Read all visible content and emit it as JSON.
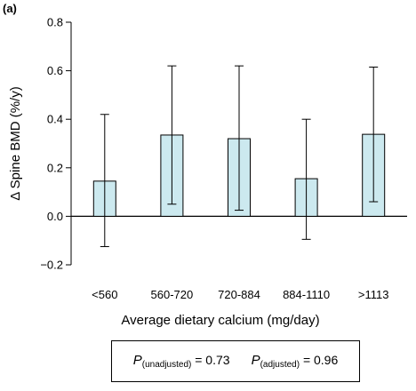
{
  "chart_data": {
    "type": "bar",
    "panel_label": "(a)",
    "categories": [
      "<560",
      "560-720",
      "720-884",
      "884-1110",
      ">1113"
    ],
    "values": [
      0.145,
      0.335,
      0.32,
      0.155,
      0.338
    ],
    "error_low": [
      -0.125,
      0.05,
      0.025,
      -0.095,
      0.06
    ],
    "error_high": [
      0.42,
      0.62,
      0.62,
      0.4,
      0.615
    ],
    "xlabel": "Average dietary calcium (mg/day)",
    "ylabel": "Δ Spine BMD (%/y)",
    "ylim": [
      -0.2,
      0.8
    ],
    "yticks": [
      "−0.2",
      "0.0",
      "0.2",
      "0.4",
      "0.6",
      "0.8"
    ],
    "ytick_values": [
      -0.2,
      0.0,
      0.2,
      0.4,
      0.6,
      0.8
    ],
    "bar_color": "#cce9ef",
    "grid": false
  },
  "pvalues": {
    "unadjusted": {
      "symbol": "P",
      "subscript": "(unadjusted)",
      "value": "= 0.73"
    },
    "adjusted": {
      "symbol": "P",
      "subscript": "(adjusted)",
      "value": "= 0.96"
    }
  }
}
